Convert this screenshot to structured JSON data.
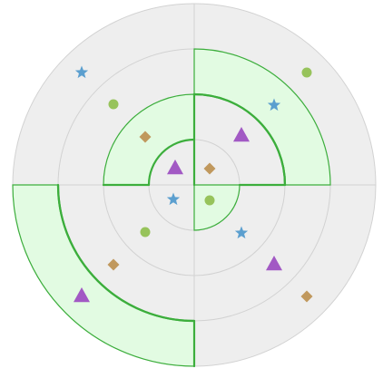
{
  "board": {
    "colors": {
      "background": "#ffffff",
      "board_fill": "#eeeeee",
      "grid_line": "#d2d2d2",
      "highlight_fill": "#e2fbe2",
      "highlight_stroke": "#3cae3c",
      "circle": "#97c35b",
      "triangle": "#a259c4",
      "diamond": "#c0985d",
      "star": "#5b9fcf"
    },
    "rings": 4,
    "quadrants": [
      "top-left",
      "top-right",
      "bottom-left",
      "bottom-right"
    ],
    "highlighted_cells": [
      {
        "ring": 3,
        "quadrant": "top-right"
      },
      {
        "ring": 2,
        "quadrant": "top-left"
      },
      {
        "ring": 1,
        "quadrant": "bottom-right"
      },
      {
        "ring": 4,
        "quadrant": "bottom-left"
      }
    ],
    "pieces": [
      {
        "shape": "star",
        "ring": 4,
        "quadrant": "top-left"
      },
      {
        "shape": "circle",
        "ring": 3,
        "quadrant": "top-left"
      },
      {
        "shape": "diamond",
        "ring": 2,
        "quadrant": "top-left"
      },
      {
        "shape": "triangle",
        "ring": 1,
        "quadrant": "top-left"
      },
      {
        "shape": "circle",
        "ring": 4,
        "quadrant": "top-right"
      },
      {
        "shape": "star",
        "ring": 3,
        "quadrant": "top-right"
      },
      {
        "shape": "triangle",
        "ring": 2,
        "quadrant": "top-right"
      },
      {
        "shape": "diamond",
        "ring": 1,
        "quadrant": "top-right"
      },
      {
        "shape": "star",
        "ring": 1,
        "quadrant": "bottom-left"
      },
      {
        "shape": "circle",
        "ring": 2,
        "quadrant": "bottom-left"
      },
      {
        "shape": "diamond",
        "ring": 3,
        "quadrant": "bottom-left"
      },
      {
        "shape": "triangle",
        "ring": 4,
        "quadrant": "bottom-left"
      },
      {
        "shape": "circle",
        "ring": 1,
        "quadrant": "bottom-right"
      },
      {
        "shape": "star",
        "ring": 2,
        "quadrant": "bottom-right"
      },
      {
        "shape": "triangle",
        "ring": 3,
        "quadrant": "bottom-right"
      },
      {
        "shape": "diamond",
        "ring": 4,
        "quadrant": "bottom-right"
      }
    ]
  }
}
